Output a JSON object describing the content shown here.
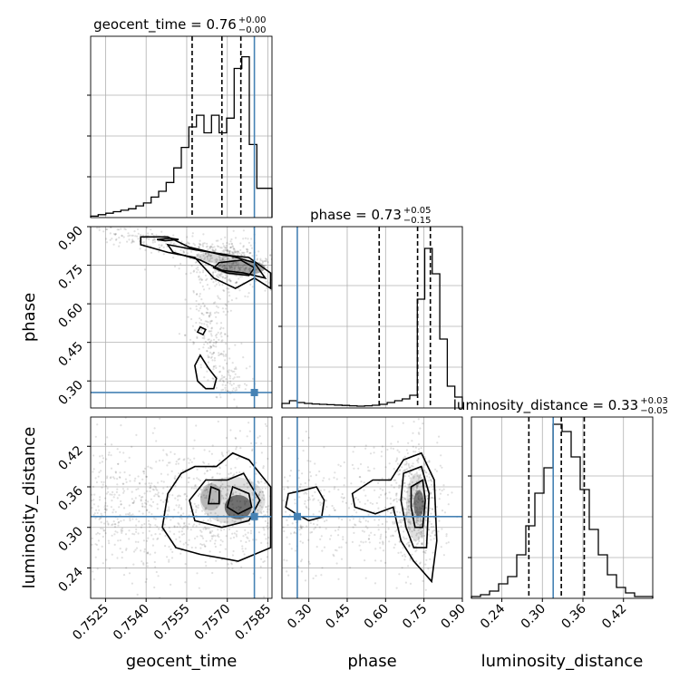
{
  "chart_data": {
    "type": "corner",
    "grid": true,
    "parameters": [
      "geocent_time",
      "phase",
      "luminosity_distance"
    ],
    "axis_labels": {
      "geocent_time": "geocent_time",
      "phase": "phase",
      "luminosity_distance": "luminosity_distance"
    },
    "ranges": {
      "geocent_time": [
        0.75195,
        0.75865
      ],
      "phase": [
        0.195,
        0.9
      ],
      "luminosity_distance": [
        0.195,
        0.4633
      ]
    },
    "ticks": {
      "geocent_time": {
        "values": [
          0.7525,
          0.754,
          0.7555,
          0.757,
          0.7585
        ],
        "labels": [
          "0.7525",
          "0.7540",
          "0.7555",
          "0.7570",
          "0.7585"
        ]
      },
      "phase": {
        "values": [
          0.3,
          0.45,
          0.6,
          0.75,
          0.9
        ],
        "labels": [
          "0.30",
          "0.45",
          "0.60",
          "0.75",
          "0.90"
        ]
      },
      "luminosity_distance": {
        "values": [
          0.24,
          0.3,
          0.36,
          0.42
        ],
        "labels": [
          "0.24",
          "0.30",
          "0.36",
          "0.42"
        ]
      }
    },
    "titles": [
      {
        "param": "geocent_time",
        "label": "geocent_time = 0.76",
        "upper": "+0.00",
        "lower": "−0.00"
      },
      {
        "param": "phase",
        "label": "phase = 0.73",
        "upper": "+0.05",
        "lower": "−0.15"
      },
      {
        "param": "luminosity_distance",
        "label": "luminosity_distance = 0.33",
        "upper": "+0.03",
        "lower": "−0.05"
      }
    ],
    "truths": {
      "geocent_time": 0.758,
      "phase": 0.255,
      "luminosity_distance": 0.316
    },
    "quantiles": {
      "geocent_time": [
        0.7557,
        0.7568,
        0.7575
      ],
      "phase": [
        0.575,
        0.725,
        0.775
      ],
      "luminosity_distance": [
        0.28,
        0.328,
        0.362
      ]
    },
    "histograms": {
      "geocent_time": [
        0.5,
        1,
        1.5,
        2,
        2.5,
        3,
        4,
        5,
        7,
        9,
        12,
        17,
        24,
        31,
        35,
        29,
        35,
        29,
        34,
        51,
        55,
        25,
        10,
        10
      ],
      "phase": [
        2.5,
        4,
        3,
        2.5,
        2.2,
        2,
        1.8,
        1.6,
        1.4,
        1.2,
        1,
        1.2,
        1.5,
        2,
        3,
        4,
        5,
        7,
        60,
        88,
        74,
        38,
        12,
        6
      ],
      "luminosity_distance": [
        1,
        2,
        4,
        8,
        12,
        24,
        40,
        58,
        72,
        96,
        92,
        78,
        60,
        38,
        24,
        13,
        6,
        3,
        1,
        1
      ]
    },
    "histogram_max": {
      "geocent_time": 62,
      "phase": 100,
      "luminosity_distance": 100
    }
  }
}
